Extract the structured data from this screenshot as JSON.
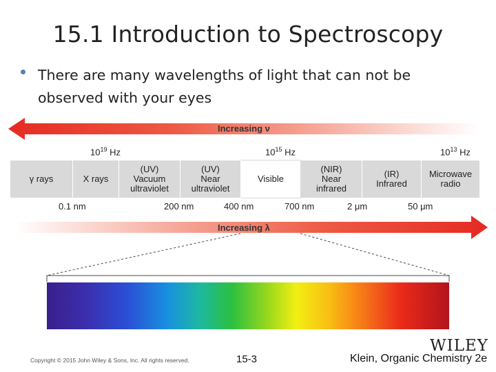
{
  "slide": {
    "title": "15.1 Introduction to Spectroscopy",
    "bullet": "There are many wavelengths of light that can not be observed with your eyes"
  },
  "diagram": {
    "top_arrow_label": "Increasing ν",
    "bottom_arrow_label": "Increasing λ",
    "frequency_labels": [
      {
        "base": "10",
        "exp": "19",
        "unit": "Hz"
      },
      {
        "base": "10",
        "exp": "15",
        "unit": "Hz"
      },
      {
        "base": "10",
        "exp": "13",
        "unit": "Hz"
      }
    ],
    "bands": [
      {
        "lines": [
          "γ rays"
        ]
      },
      {
        "lines": [
          "X rays"
        ]
      },
      {
        "lines": [
          "(UV)",
          "Vacuum",
          "ultraviolet"
        ]
      },
      {
        "lines": [
          "(UV)",
          "Near",
          "ultraviolet"
        ]
      },
      {
        "lines": [
          "Visible"
        ]
      },
      {
        "lines": [
          "(NIR)",
          "Near",
          "infrared"
        ]
      },
      {
        "lines": [
          "(IR)",
          "Infrared"
        ]
      },
      {
        "lines": [
          "Microwave",
          "radio"
        ]
      }
    ],
    "wavelength_labels": [
      "0.1 nm",
      "200 nm",
      "400 nm",
      "700 nm",
      "2 μm",
      "50 μm"
    ],
    "colors": {
      "arrow_red": "#e8322a",
      "band_gray": "#d9d9d9",
      "bullet_blue": "#4f81bd"
    }
  },
  "footer": {
    "copyright": "Copyright © 2015 John Wiley & Sons, Inc. All rights reserved.",
    "slide_number": "15-3",
    "book": "Klein, Organic Chemistry 2e",
    "logo": "WILEY"
  }
}
